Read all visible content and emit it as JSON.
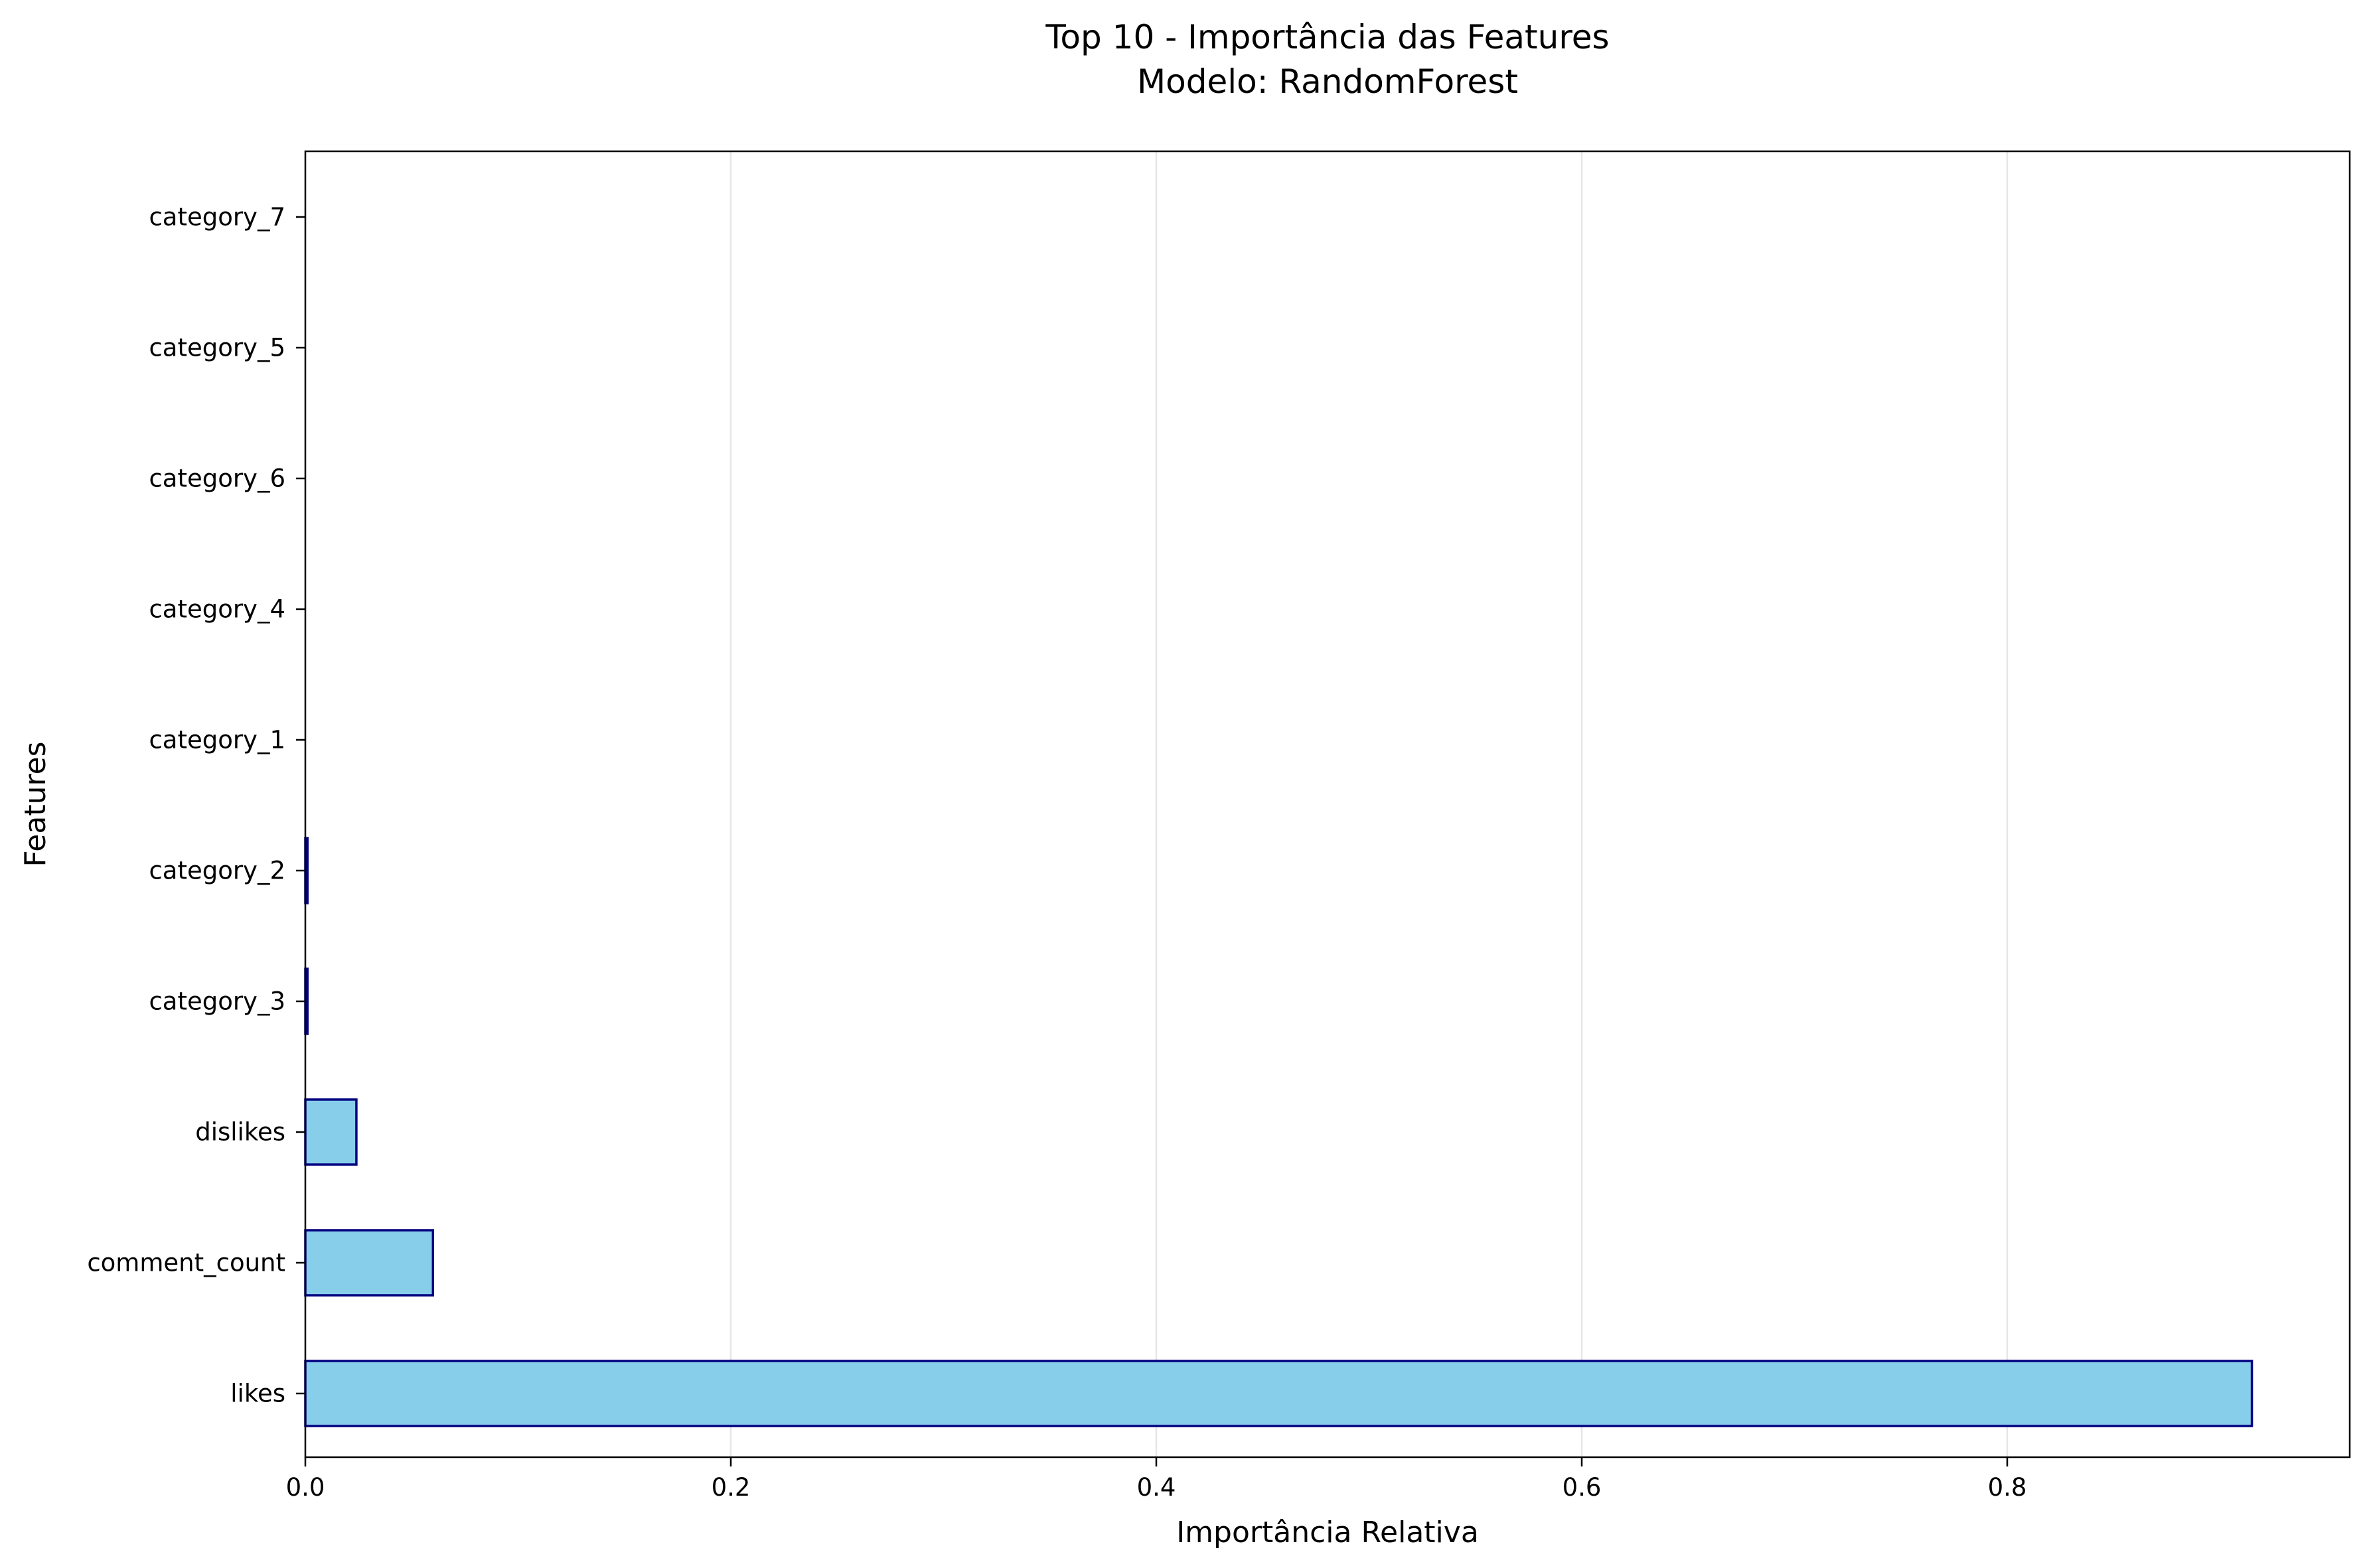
{
  "chart_data": {
    "type": "bar",
    "orientation": "horizontal",
    "title": "Top 10 - Importância das Features",
    "subtitle": "Modelo: RandomForest",
    "xlabel": "Importância Relativa",
    "ylabel": "Features",
    "categories": [
      "likes",
      "comment_count",
      "dislikes",
      "category_3",
      "category_2",
      "category_1",
      "category_4",
      "category_6",
      "category_5",
      "category_7"
    ],
    "values": [
      0.915,
      0.06,
      0.024,
      0.001,
      0.001,
      0.0,
      0.0,
      0.0,
      0.0,
      0.0
    ],
    "xlim": [
      0,
      0.961
    ],
    "xticks": [
      0.0,
      0.2,
      0.4,
      0.6,
      0.8
    ],
    "xtick_labels": [
      "0.0",
      "0.2",
      "0.4",
      "0.6",
      "0.8"
    ],
    "grid": "x",
    "bar_color": "#87CEEB",
    "bar_edge_color": "#000080",
    "grid_color": "#e6e6e6"
  }
}
